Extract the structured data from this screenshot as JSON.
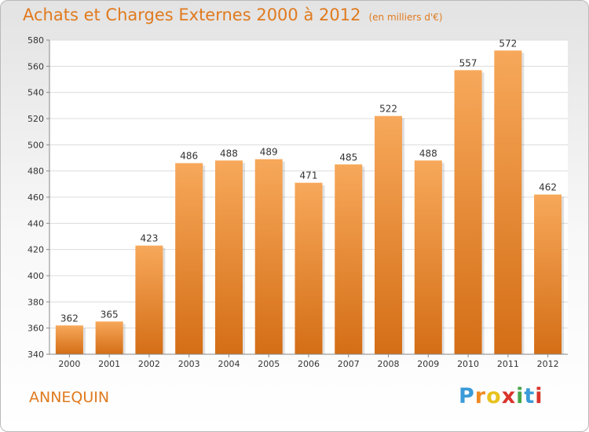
{
  "title": "Achats et Charges Externes 2000 à 2012",
  "unit": "(en milliers d'€)",
  "commune": "ANNEQUIN",
  "logo": {
    "text": "Proxiti",
    "colors": [
      "#3a9bd8",
      "#f08a24",
      "#e8c21e",
      "#d9342b",
      "#4aa64a",
      "#3a9bd8",
      "#d9342b"
    ]
  },
  "colors": {
    "bar_top": "#f7a85a",
    "bar_bottom": "#d46e16",
    "title": "#e07a1e"
  },
  "chart_data": {
    "type": "bar",
    "categories": [
      "2000",
      "2001",
      "2002",
      "2003",
      "2004",
      "2005",
      "2006",
      "2007",
      "2008",
      "2009",
      "2010",
      "2011",
      "2012"
    ],
    "values": [
      362,
      365,
      423,
      486,
      488,
      489,
      471,
      485,
      522,
      488,
      557,
      572,
      462
    ],
    "ylim": [
      340,
      580
    ],
    "yticks": [
      340,
      360,
      380,
      400,
      420,
      440,
      460,
      480,
      500,
      520,
      540,
      560,
      580
    ],
    "grid": true,
    "xlabel": "",
    "ylabel": ""
  }
}
